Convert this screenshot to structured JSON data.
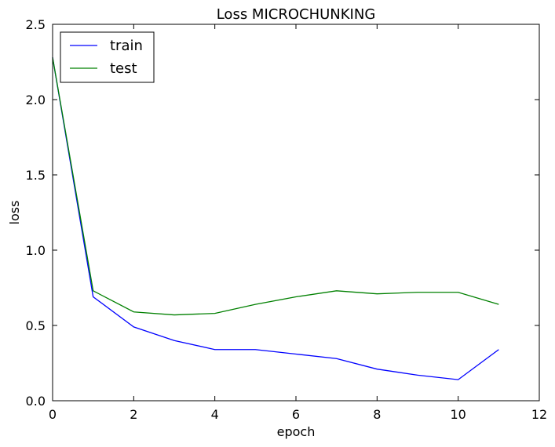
{
  "chart_data": {
    "type": "line",
    "title": "Loss MICROCHUNKING",
    "xlabel": "epoch",
    "ylabel": "loss",
    "xlim": [
      0,
      12
    ],
    "ylim": [
      0.0,
      2.5
    ],
    "xticks": [
      0,
      2,
      4,
      6,
      8,
      10,
      12
    ],
    "yticks": [
      0.0,
      0.5,
      1.0,
      1.5,
      2.0,
      2.5
    ],
    "xtick_labels": [
      "0",
      "2",
      "4",
      "6",
      "8",
      "10",
      "12"
    ],
    "ytick_labels": [
      "0.0",
      "0.5",
      "1.0",
      "1.5",
      "2.0",
      "2.5"
    ],
    "grid": false,
    "legend_position": "top-left",
    "series": [
      {
        "name": "train",
        "color": "#0000ff",
        "x": [
          0,
          1,
          2,
          3,
          4,
          5,
          6,
          7,
          8,
          9,
          10,
          11
        ],
        "values": [
          2.28,
          0.69,
          0.49,
          0.4,
          0.34,
          0.34,
          0.31,
          0.28,
          0.21,
          0.17,
          0.14,
          0.34
        ]
      },
      {
        "name": "test",
        "color": "#008000",
        "x": [
          0,
          1,
          2,
          3,
          4,
          5,
          6,
          7,
          8,
          9,
          10,
          11
        ],
        "values": [
          2.28,
          0.73,
          0.59,
          0.57,
          0.58,
          0.64,
          0.69,
          0.73,
          0.71,
          0.72,
          0.72,
          0.64
        ]
      }
    ]
  }
}
